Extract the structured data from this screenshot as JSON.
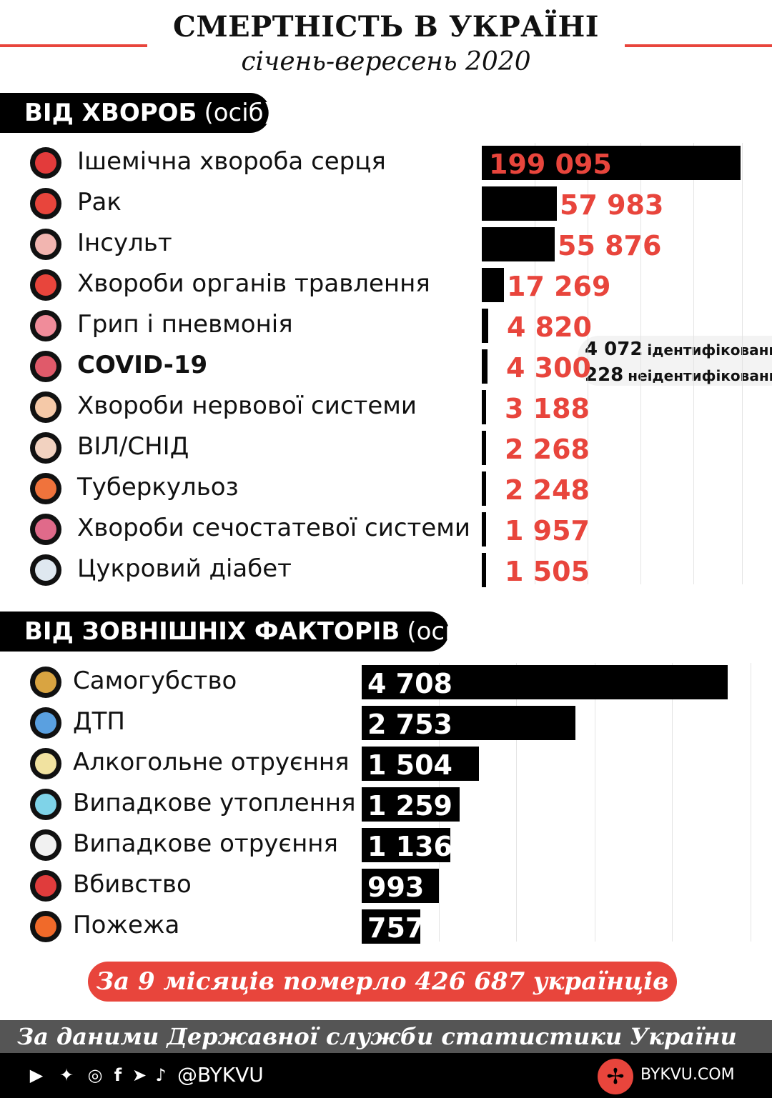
{
  "header": {
    "title": "СМЕРТНІСТЬ В УКРАЇНІ",
    "subtitle": "січень-вересень 2020"
  },
  "colors": {
    "accent": "#e8453c",
    "bar": "#000000",
    "grid": "#e4e4e4"
  },
  "chart_data": [
    {
      "type": "bar",
      "orientation": "horizontal",
      "title": "ВІД ХВОРОБ",
      "unit": "(осіб)",
      "categories": [
        "Ішемічна хвороба серця",
        "Рак",
        "Інсульт",
        "Хвороби органів травлення",
        "Грип і пневмонія",
        "COVID-19",
        "Хвороби нервової системи",
        "ВІЛ/СНІД",
        "Туберкульоз",
        "Хвороби сечостатевої системи",
        "Цукровий діабет"
      ],
      "values": [
        199095,
        57983,
        55876,
        17269,
        4820,
        4300,
        3188,
        2268,
        2248,
        1957,
        1505
      ],
      "value_labels": [
        "199 095",
        "57 983",
        "55 876",
        "17 269",
        "4 820",
        "4 300",
        "3 188",
        "2 268",
        "2 248",
        "1 957",
        "1 505"
      ],
      "icons": [
        "heart-icon",
        "cancer-cell-icon",
        "brain-icon",
        "stomach-icon",
        "lungs-flu-icon",
        "virus-icon",
        "nervous-head-icon",
        "ribbon-hand-icon",
        "lungs-icon",
        "kidneys-icon",
        "glucose-meter-icon"
      ],
      "xlim": [
        0,
        199095
      ],
      "grid": true,
      "annotations": [
        {
          "category": "COVID-19",
          "value": "4 072",
          "label": "ідентифікований"
        },
        {
          "category": "COVID-19",
          "value": "228",
          "label": "неідентифікований"
        }
      ]
    },
    {
      "type": "bar",
      "orientation": "horizontal",
      "title": "ВІД ЗОВНІШНІХ ФАКТОРІВ",
      "unit": "(осіб)",
      "categories": [
        "Самогубство",
        "ДТП",
        "Алкогольне отруєння",
        "Випадкове утоплення",
        "Випадкове отруєння",
        "Вбивство",
        "Пожежа"
      ],
      "values": [
        4708,
        2753,
        1504,
        1259,
        1136,
        993,
        757
      ],
      "value_labels": [
        "4 708",
        "2 753",
        "1 504",
        "1 259",
        "1 136",
        "993",
        "757"
      ],
      "icons": [
        "noose-icon",
        "car-crash-icon",
        "wine-glass-icon",
        "drowning-hand-icon",
        "skull-icon",
        "knife-icon",
        "fire-icon"
      ],
      "xlim": [
        0,
        4708
      ],
      "grid": true
    }
  ],
  "summary": "За 9 місяців померло 426 687 українців",
  "source": "За даними Державної служби статистики України",
  "footer": {
    "handle": "@BYKVU",
    "site": "BYKVU.COM",
    "social_icons": [
      "youtube-icon",
      "twitter-icon",
      "instagram-icon",
      "facebook-icon",
      "telegram-icon",
      "tiktok-icon"
    ],
    "logo_icon": "bykvu-logo-icon"
  }
}
